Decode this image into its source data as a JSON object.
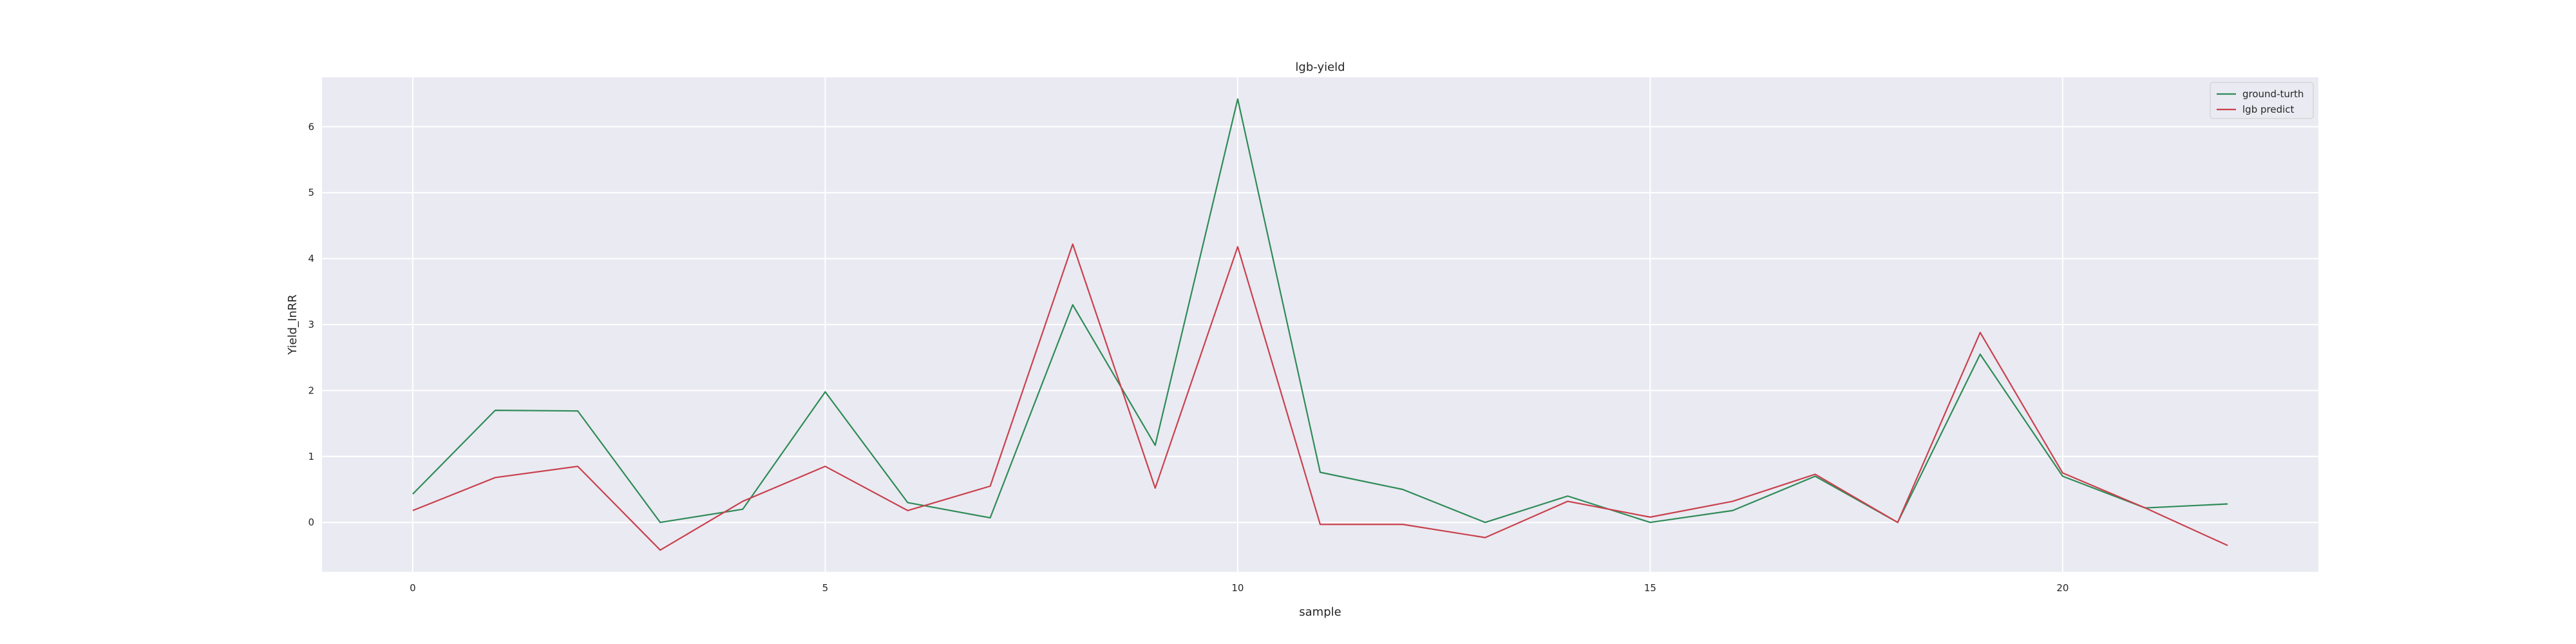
{
  "chart_data": {
    "type": "line",
    "title": "lgb-yield",
    "xlabel": "sample",
    "ylabel": "Yield_InRR",
    "xlim": [
      -1.1,
      23.1
    ],
    "ylim": [
      -0.75,
      6.75
    ],
    "xticks": [
      0,
      5,
      10,
      15,
      20
    ],
    "yticks": [
      0,
      1,
      2,
      3,
      4,
      5,
      6
    ],
    "grid": true,
    "legend_position": "top-right",
    "x": [
      0,
      1,
      2,
      3,
      4,
      5,
      6,
      7,
      8,
      9,
      10,
      11,
      12,
      13,
      14,
      15,
      16,
      17,
      18,
      19,
      20,
      21,
      22
    ],
    "series": [
      {
        "name": "ground-turth",
        "color": "#2e8b57",
        "values": [
          0.43,
          1.7,
          1.69,
          0.0,
          0.2,
          1.98,
          0.3,
          0.07,
          3.3,
          1.17,
          6.42,
          0.76,
          0.5,
          0.0,
          0.4,
          0.0,
          0.18,
          0.7,
          0.0,
          2.55,
          0.7,
          0.22,
          0.28
        ]
      },
      {
        "name": "lgb predict",
        "color": "#c8414d",
        "values": [
          0.18,
          0.68,
          0.85,
          -0.42,
          0.32,
          0.85,
          0.18,
          0.55,
          4.22,
          0.52,
          4.18,
          -0.03,
          -0.03,
          -0.23,
          0.32,
          0.08,
          0.32,
          0.73,
          0.0,
          2.88,
          0.75,
          0.22,
          -0.35
        ]
      }
    ]
  }
}
